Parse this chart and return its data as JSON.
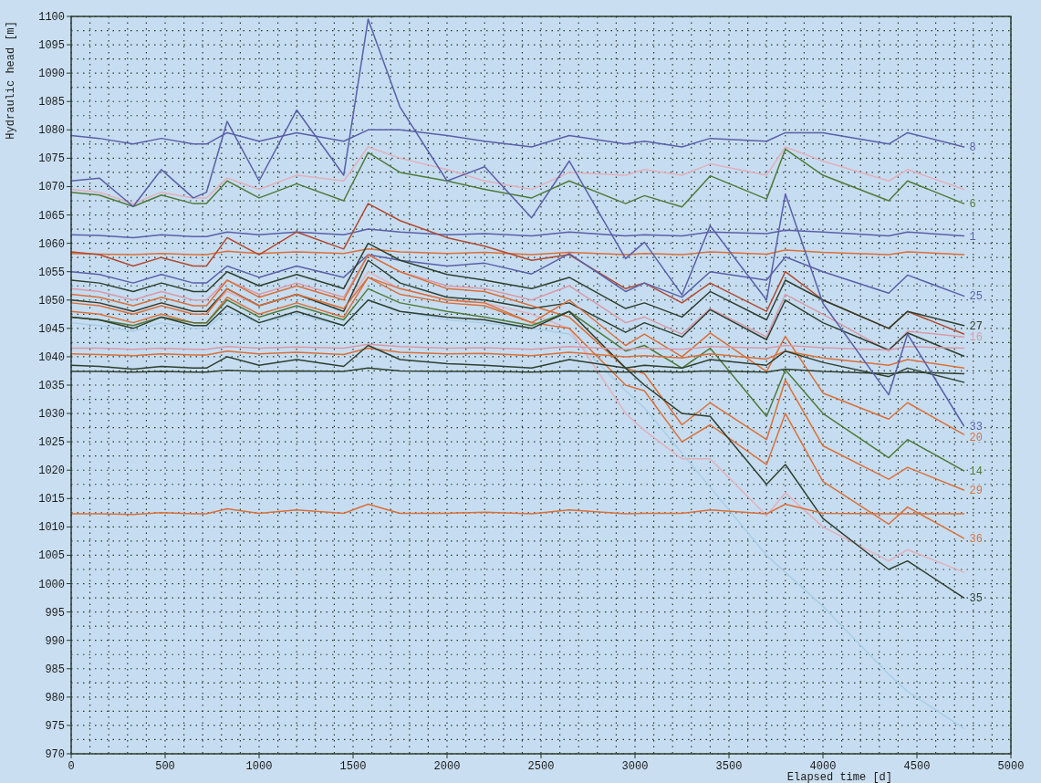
{
  "chart_data": {
    "type": "line",
    "xlabel": "Elapsed time [d]",
    "ylabel": "Hydraulic head [m]",
    "grid": true,
    "xlim": [
      0,
      5000
    ],
    "ylim": [
      970,
      1100
    ],
    "xticks": [
      0,
      {
        "value": 100,
        "label": null
      },
      {
        "value": 200,
        "label": null
      },
      {
        "value": 300,
        "label": null
      },
      {
        "value": 400,
        "label": null
      },
      500,
      {
        "value": 600,
        "label": null
      },
      {
        "value": 700,
        "label": null
      },
      {
        "value": 800,
        "label": null
      },
      {
        "value": 900,
        "label": null
      },
      1000,
      {
        "value": 1100,
        "label": null
      },
      {
        "value": 1200,
        "label": null
      },
      {
        "value": 1300,
        "label": null
      },
      {
        "value": 1400,
        "label": null
      },
      1500,
      {
        "value": 1600,
        "label": null
      },
      {
        "value": 1700,
        "label": null
      },
      {
        "value": 1800,
        "label": null
      },
      {
        "value": 1900,
        "label": null
      },
      2000,
      {
        "value": 2100,
        "label": null
      },
      {
        "value": 2200,
        "label": null
      },
      {
        "value": 2300,
        "label": null
      },
      {
        "value": 2400,
        "label": null
      },
      2500,
      {
        "value": 2600,
        "label": null
      },
      {
        "value": 2700,
        "label": null
      },
      {
        "value": 2800,
        "label": null
      },
      {
        "value": 2900,
        "label": null
      },
      3000,
      {
        "value": 3100,
        "label": null
      },
      {
        "value": 3200,
        "label": null
      },
      {
        "value": 3300,
        "label": null
      },
      {
        "value": 3400,
        "label": null
      },
      3500,
      {
        "value": 3600,
        "label": null
      },
      {
        "value": 3700,
        "label": null
      },
      {
        "value": 3800,
        "label": null
      },
      {
        "value": 3900,
        "label": null
      },
      4000,
      {
        "value": 4100,
        "label": null
      },
      {
        "value": 4200,
        "label": null
      },
      {
        "value": 4300,
        "label": null
      },
      {
        "value": 4400,
        "label": null
      },
      4500,
      {
        "value": 4600,
        "label": null
      },
      {
        "value": 4700,
        "label": null
      },
      {
        "value": 4800,
        "label": null
      },
      {
        "value": 4900,
        "label": null
      },
      5000
    ],
    "yticks": [
      970,
      {
        "value": 972.5,
        "label": null
      },
      975,
      {
        "value": 977.5,
        "label": null
      },
      980,
      {
        "value": 982.5,
        "label": null
      },
      985,
      {
        "value": 987.5,
        "label": null
      },
      990,
      {
        "value": 992.5,
        "label": null
      },
      995,
      {
        "value": 997.5,
        "label": null
      },
      1000,
      {
        "value": 1002.5,
        "label": null
      },
      1005,
      {
        "value": 1007.5,
        "label": null
      },
      1010,
      {
        "value": 1012.5,
        "label": null
      },
      1015,
      {
        "value": 1017.5,
        "label": null
      },
      1020,
      {
        "value": 1022.5,
        "label": null
      },
      1025,
      {
        "value": 1027.5,
        "label": null
      },
      1030,
      {
        "value": 1032.5,
        "label": null
      },
      1035,
      {
        "value": 1037.5,
        "label": null
      },
      1040,
      {
        "value": 1042.5,
        "label": null
      },
      1045,
      {
        "value": 1047.5,
        "label": null
      },
      1050,
      {
        "value": 1052.5,
        "label": null
      },
      1055,
      {
        "value": 1057.5,
        "label": null
      },
      1060,
      {
        "value": 1062.5,
        "label": null
      },
      1065,
      {
        "value": 1067.5,
        "label": null
      },
      1070,
      {
        "value": 1072.5,
        "label": null
      },
      1075,
      {
        "value": 1077.5,
        "label": null
      },
      1080,
      {
        "value": 1082.5,
        "label": null
      },
      1085,
      {
        "value": 1087.5,
        "label": null
      },
      1090,
      {
        "value": 1092.5,
        "label": null
      },
      1095,
      {
        "value": 1097.5,
        "label": null
      },
      1100
    ],
    "x": [
      0,
      150,
      330,
      480,
      650,
      720,
      830,
      1000,
      1200,
      1450,
      1580,
      1750,
      2000,
      2200,
      2450,
      2650,
      2950,
      3050,
      3250,
      3400,
      3700,
      3800,
      4000,
      4350,
      4450,
      4750
    ],
    "series": [
      {
        "color": "#a9cde6",
        "values": [
          1046,
          1045.5,
          1044.5,
          1046,
          1045,
          1045,
          1048,
          1046,
          1047.5,
          1045.5,
          1050,
          1048,
          1046.5,
          1046,
          1045,
          1044,
          1034,
          1031,
          1023,
          1017,
          1005,
          1002,
          996,
          984,
          981,
          974.5
        ]
      },
      {
        "color": "#e2b0bc",
        "values": [
          1050,
          1049.5,
          1048,
          1049.5,
          1048,
          1048,
          1051.5,
          1049,
          1051,
          1048.5,
          1055,
          1052,
          1050,
          1049.5,
          1047.5,
          1045,
          1030,
          1027,
          1022,
          1022,
          1012,
          1016,
          1010,
          1004,
          1006,
          1002
        ]
      },
      {
        "name": "8",
        "color": "#5a5fa8",
        "values": [
          1079,
          1078.5,
          1077.5,
          1078.5,
          1077.5,
          1077.5,
          1079.5,
          1078,
          1079.5,
          1078,
          1080,
          1080,
          1079,
          1078,
          1077,
          1079,
          1077.5,
          1078,
          1077,
          1078.5,
          1078,
          1079.5,
          1079.5,
          1077.5,
          1079.5,
          1077
        ]
      },
      {
        "color": "#e2b0bc",
        "values": [
          1069.5,
          1069,
          1067,
          1069,
          1068,
          1068,
          1071.5,
          1069.5,
          1072,
          1071,
          1077,
          1075,
          1073,
          1071,
          1069.5,
          1072.5,
          1072,
          1073,
          1072,
          1074,
          1072,
          1077,
          1074.5,
          1071,
          1073,
          1069.5
        ]
      },
      {
        "name": "6",
        "color": "#4f7a3a",
        "values": [
          1069,
          1068.5,
          1066.5,
          1068.5,
          1067,
          1067,
          1071,
          1068,
          1070.5,
          1067.5,
          1076,
          1072.5,
          1071,
          1069.5,
          1068,
          1071,
          1067,
          1068.4,
          1066.4,
          1071.9,
          1067.8,
          1076.6,
          1072,
          1067.5,
          1071,
          1067
        ]
      },
      {
        "name": "1",
        "color": "#5a5fa8",
        "values": [
          1061.5,
          1061.4,
          1061,
          1061.5,
          1061.2,
          1061.2,
          1062,
          1061.5,
          1062,
          1061.5,
          1062.5,
          1062,
          1061.5,
          1061.7,
          1061.3,
          1062,
          1061.3,
          1061.5,
          1061.3,
          1062,
          1061.7,
          1062.3,
          1062,
          1061.3,
          1062,
          1061.3
        ]
      },
      {
        "color": "#d9703a",
        "values": [
          1058.2,
          1058.1,
          1058,
          1058.2,
          1058,
          1058,
          1058.6,
          1058.2,
          1058.5,
          1058.2,
          1059,
          1058.5,
          1058.2,
          1058.4,
          1058,
          1058.4,
          1058,
          1058.2,
          1058,
          1058.5,
          1058.1,
          1058.8,
          1058.4,
          1058,
          1058.5,
          1058
        ]
      },
      {
        "color": "#b04a30",
        "values": [
          1058.5,
          1058,
          1056,
          1057.5,
          1056,
          1056,
          1061,
          1058,
          1062,
          1059,
          1067,
          1064,
          1061,
          1059.5,
          1057,
          1058,
          1052,
          1053,
          1049.5,
          1053,
          1048,
          1055,
          1050,
          1045,
          1048,
          1044
        ]
      },
      {
        "name": "25",
        "color": "#5a5fa8",
        "values": [
          1055,
          1054.5,
          1053,
          1054.5,
          1053,
          1053,
          1056,
          1054,
          1056,
          1054,
          1058,
          1057,
          1056,
          1056.5,
          1054.6,
          1058.2,
          1051.5,
          1053,
          1050.5,
          1055,
          1053.5,
          1057.6,
          1055,
          1051.2,
          1054.4,
          1050.7
        ]
      },
      {
        "name": "27",
        "color": "#2f3f2f",
        "values": [
          1053.5,
          1053,
          1051.5,
          1053,
          1051.5,
          1051.5,
          1055,
          1052.5,
          1054.5,
          1052,
          1060,
          1057,
          1054.5,
          1053.5,
          1052,
          1054,
          1048.5,
          1049.5,
          1047,
          1051.5,
          1046.5,
          1053.5,
          1050,
          1045,
          1048,
          1045.5
        ]
      },
      {
        "name": "16",
        "color": "#d89aa8",
        "values": [
          1052,
          1051.5,
          1050,
          1051.5,
          1050,
          1050,
          1053.5,
          1051,
          1053,
          1050.5,
          1058,
          1055,
          1052.5,
          1052,
          1050,
          1052.5,
          1046,
          1047,
          1044,
          1048.5,
          1043.5,
          1051,
          1047.5,
          1041,
          1044.5,
          1043.5
        ]
      },
      {
        "color": "#2f3f2f",
        "values": [
          1050,
          1049.5,
          1048,
          1049.5,
          1048,
          1048,
          1052,
          1049,
          1051,
          1048,
          1057,
          1053,
          1050.5,
          1050,
          1048.5,
          1049.5,
          1044.3,
          1046,
          1043.5,
          1048.3,
          1043,
          1050,
          1046,
          1041.2,
          1044.2,
          1040.1
        ]
      },
      {
        "name": "29",
        "color": "#d9703a",
        "values": [
          1051,
          1050.5,
          1049,
          1050.5,
          1049,
          1049,
          1053.5,
          1050.5,
          1052.5,
          1050,
          1058,
          1055,
          1052,
          1051.5,
          1049,
          1047,
          1038,
          1037,
          1028,
          1031.9,
          1025.4,
          1035.9,
          1024.3,
          1018.4,
          1020.5,
          1016.5
        ]
      },
      {
        "name": "20",
        "color": "#d9703a",
        "values": [
          1049.5,
          1049,
          1047.5,
          1049,
          1047.5,
          1047.5,
          1052,
          1049,
          1051,
          1048.5,
          1054,
          1052,
          1050,
          1049.5,
          1046,
          1050,
          1042,
          1044,
          1040,
          1044.2,
          1037.4,
          1043.6,
          1033.6,
          1029,
          1031.9,
          1026.3
        ]
      },
      {
        "name": "36",
        "color": "#d9703a",
        "values": [
          1048,
          1047.5,
          1046,
          1047.5,
          1046,
          1046,
          1050.5,
          1047.5,
          1049.5,
          1047,
          1054,
          1051,
          1049.5,
          1049,
          1046,
          1045,
          1035,
          1034,
          1025,
          1028,
          1021,
          1030,
          1018,
          1010.5,
          1013.5,
          1008
        ]
      },
      {
        "name": "14",
        "color": "#4f7a3a",
        "values": [
          1047,
          1046.5,
          1045.5,
          1047,
          1046,
          1046,
          1050,
          1047,
          1049,
          1046.5,
          1052,
          1049.5,
          1048,
          1047,
          1045.5,
          1048,
          1041,
          1042,
          1038,
          1041.5,
          1029.5,
          1037.7,
          1030,
          1022.2,
          1025.4,
          1019.9
        ]
      },
      {
        "name": "35",
        "color": "#2f3f2f",
        "values": [
          1047,
          1046.5,
          1045,
          1047,
          1045.5,
          1045.5,
          1049,
          1046,
          1048,
          1045.5,
          1050,
          1048,
          1047,
          1046.5,
          1045,
          1048,
          1038,
          1035,
          1030,
          1029.5,
          1017.5,
          1021,
          1011.5,
          1002.5,
          1004,
          997.5
        ]
      },
      {
        "color": "#d89aa8",
        "values": [
          1041.5,
          1041.5,
          1041.3,
          1041.5,
          1041.3,
          1041.3,
          1041.8,
          1041.5,
          1041.7,
          1041.5,
          1042.2,
          1041.8,
          1041.5,
          1041.6,
          1041.3,
          1041.8,
          1041.3,
          1041.5,
          1041.3,
          1041.8,
          1041.5,
          1042,
          1041.6,
          1041.2,
          1041.8,
          1041.5
        ]
      },
      {
        "color": "#d9703a",
        "values": [
          1040.5,
          1040.4,
          1040.2,
          1040.5,
          1040.3,
          1040.3,
          1041,
          1040.5,
          1040.8,
          1040.4,
          1041.5,
          1040.8,
          1040.5,
          1040.6,
          1040.2,
          1040.8,
          1040,
          1040.2,
          1039.8,
          1040.5,
          1039.6,
          1041,
          1039.8,
          1038.5,
          1039.5,
          1038
        ]
      },
      {
        "color": "#2f3f2f",
        "values": [
          1038.5,
          1038.3,
          1037.8,
          1038.3,
          1038,
          1038,
          1040,
          1038.5,
          1039.5,
          1038.3,
          1042,
          1039.5,
          1038.8,
          1038.5,
          1038,
          1039.5,
          1038,
          1038.5,
          1038,
          1039.5,
          1038.5,
          1041,
          1039,
          1036.5,
          1038,
          1035.5
        ]
      },
      {
        "color": "#2f3f2f",
        "values": [
          1037.4,
          1037.4,
          1037.3,
          1037.4,
          1037.3,
          1037.3,
          1037.6,
          1037.4,
          1037.5,
          1037.4,
          1038,
          1037.5,
          1037.4,
          1037.4,
          1037.3,
          1037.5,
          1037.3,
          1037.4,
          1037.3,
          1037.5,
          1037.3,
          1037.8,
          1037.4,
          1037,
          1037.3,
          1037
        ]
      },
      {
        "color": "#d9703a",
        "values": [
          1012.3,
          1012.3,
          1012.2,
          1012.5,
          1012.3,
          1012.3,
          1013.2,
          1012.4,
          1013,
          1012.4,
          1014,
          1012.4,
          1012.4,
          1012.6,
          1012.3,
          1013,
          1012.3,
          1012.4,
          1012.4,
          1013,
          1012.3,
          1014,
          1012.4,
          1012.3,
          1012.3,
          1012.3
        ]
      },
      {
        "name": "33",
        "color": "#5a5fa8",
        "values": [
          1071,
          1071.5,
          1066.5,
          1073,
          1068,
          1069,
          1081.5,
          1071,
          1083.5,
          1072,
          1099.5,
          1084,
          1071,
          1073.5,
          1064.5,
          1074.5,
          1057.3,
          1060.2,
          1050.9,
          1063.1,
          1050,
          1068.7,
          1049.4,
          1033.3,
          1044,
          1027.8
        ]
      }
    ]
  }
}
